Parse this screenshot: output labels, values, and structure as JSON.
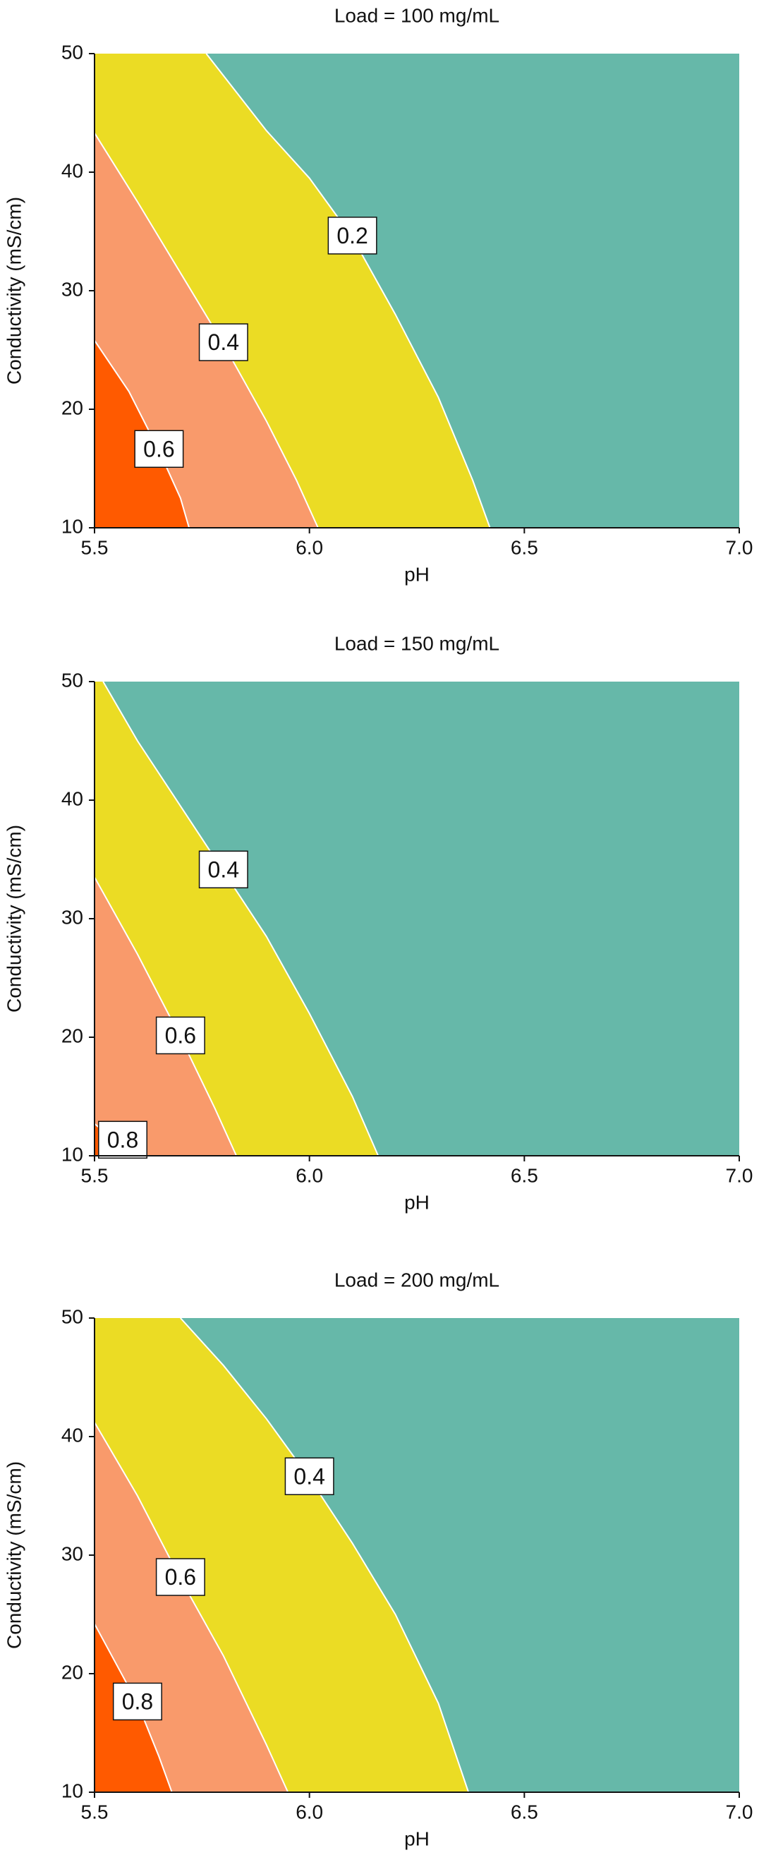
{
  "chart_data": [
    {
      "type": "contour",
      "title": "Load = 100 mg/mL",
      "x_label": "pH",
      "y_label": "Conductivity (mS/cm)",
      "xlim": [
        5.5,
        7.0
      ],
      "ylim": [
        10,
        50
      ],
      "xticks": [
        5.5,
        {
          "value": 6,
          "label": "6.0"
        },
        6.5,
        {
          "value": 7,
          "label": "7.0"
        }
      ],
      "yticks": [
        10,
        20,
        30,
        40,
        50
      ],
      "band_colors": [
        "#66b8a9",
        "#ebdc24",
        "#f99a6b",
        "#ff5a00"
      ],
      "contours": [
        {
          "level": 0.2,
          "x": [
            5.76,
            5.9,
            6.0,
            6.1,
            6.2,
            6.3,
            6.38,
            6.42
          ],
          "y": [
            50,
            43.5,
            39.5,
            34.5,
            28,
            21,
            14,
            10
          ]
        },
        {
          "level": 0.4,
          "x": [
            5.5,
            5.6,
            5.7,
            5.8,
            5.9,
            5.97,
            6.02
          ],
          "y": [
            43.3,
            37.5,
            31.5,
            25.5,
            19,
            14,
            10
          ]
        },
        {
          "level": 0.6,
          "x": [
            5.5,
            5.58,
            5.65,
            5.7,
            5.72
          ],
          "y": [
            25.8,
            21.5,
            16.5,
            12.5,
            10
          ]
        }
      ]
    },
    {
      "type": "contour",
      "title": "Load = 150 mg/mL",
      "x_label": "pH",
      "y_label": "Conductivity (mS/cm)",
      "xlim": [
        5.5,
        7.0
      ],
      "ylim": [
        10,
        50
      ],
      "xticks": [
        5.5,
        {
          "value": 6,
          "label": "6.0"
        },
        6.5,
        {
          "value": 7,
          "label": "7.0"
        }
      ],
      "yticks": [
        10,
        20,
        30,
        40,
        50
      ],
      "band_colors": [
        "#66b8a9",
        "#ebdc24",
        "#f99a6b",
        "#ff5a00"
      ],
      "contours": [
        {
          "level": 0.4,
          "x": [
            5.52,
            5.6,
            5.7,
            5.8,
            5.9,
            6.0,
            6.1,
            6.16
          ],
          "y": [
            50,
            45,
            39.5,
            34,
            28.5,
            22,
            15,
            10
          ]
        },
        {
          "level": 0.6,
          "x": [
            5.5,
            5.6,
            5.7,
            5.78,
            5.83
          ],
          "y": [
            33.5,
            27,
            20,
            14,
            10
          ]
        },
        {
          "level": 0.8,
          "x": [
            5.5,
            5.55,
            5.58
          ],
          "y": [
            12.7,
            11.2,
            10
          ]
        }
      ]
    },
    {
      "type": "contour",
      "title": "Load = 200 mg/mL",
      "x_label": "pH",
      "y_label": "Conductivity (mS/cm)",
      "xlim": [
        5.5,
        7.0
      ],
      "ylim": [
        10,
        50
      ],
      "xticks": [
        5.5,
        {
          "value": 6,
          "label": "6.0"
        },
        6.5,
        {
          "value": 7,
          "label": "7.0"
        }
      ],
      "yticks": [
        10,
        20,
        30,
        40,
        50
      ],
      "band_colors": [
        "#66b8a9",
        "#ebdc24",
        "#f99a6b",
        "#ff5a00"
      ],
      "contours": [
        {
          "level": 0.4,
          "x": [
            5.7,
            5.8,
            5.9,
            6.0,
            6.1,
            6.2,
            6.3,
            6.37
          ],
          "y": [
            50,
            46,
            41.5,
            36.5,
            31,
            25,
            17.5,
            10
          ]
        },
        {
          "level": 0.6,
          "x": [
            5.5,
            5.6,
            5.7,
            5.8,
            5.9,
            5.95
          ],
          "y": [
            41.2,
            35,
            28,
            21.5,
            14,
            10
          ]
        },
        {
          "level": 0.8,
          "x": [
            5.5,
            5.6,
            5.65,
            5.68
          ],
          "y": [
            24.2,
            17.5,
            13,
            10
          ]
        }
      ]
    }
  ]
}
